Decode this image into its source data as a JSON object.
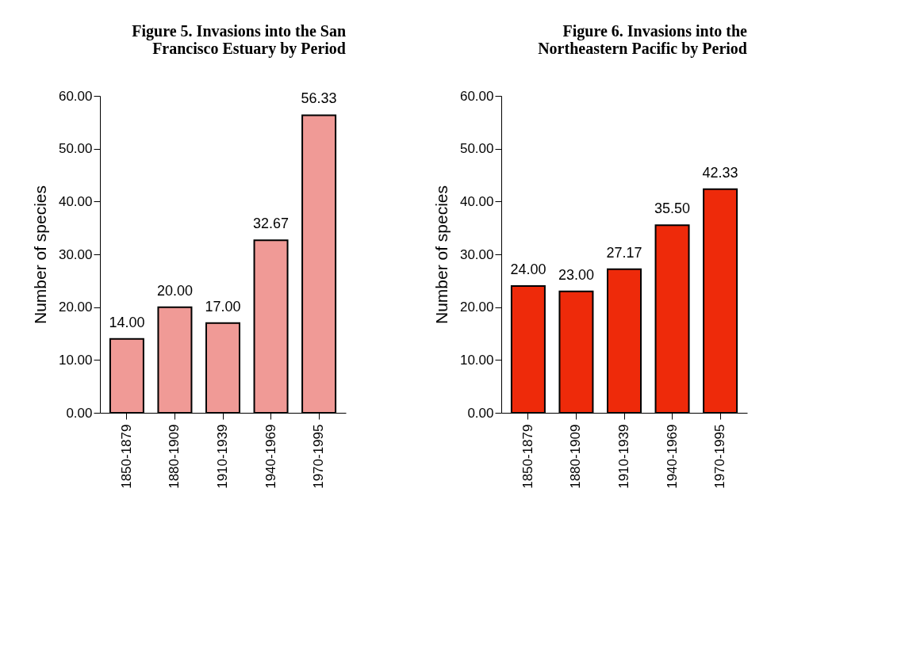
{
  "chart_data": [
    {
      "type": "bar",
      "title": "Figure 5. Invasions into the San\nFrancisco Estuary by Period",
      "ylabel": "Number of species",
      "categories": [
        "1850-1879",
        "1880-1909",
        "1910-1939",
        "1940-1969",
        "1970-1995"
      ],
      "values": [
        14.0,
        20.0,
        17.0,
        32.67,
        56.33
      ],
      "value_labels": [
        "14.00",
        "20.00",
        "17.00",
        "32.67",
        "56.33"
      ],
      "color": "#f09a96",
      "ylim": [
        0,
        60
      ],
      "yticks": [
        {
          "value": 0,
          "label": "0.00"
        },
        {
          "value": 10,
          "label": "10.00"
        },
        {
          "value": 20,
          "label": "20.00"
        },
        {
          "value": 30,
          "label": "30.00"
        },
        {
          "value": 40,
          "label": "40.00"
        },
        {
          "value": 50,
          "label": "50.00"
        },
        {
          "value": 60,
          "label": "60.00"
        }
      ],
      "grid": false
    },
    {
      "type": "bar",
      "title": "Figure 6. Invasions into the\nNortheastern Pacific by Period",
      "ylabel": "Number of species",
      "categories": [
        "1850-1879",
        "1880-1909",
        "1910-1939",
        "1940-1969",
        "1970-1995"
      ],
      "values": [
        24.0,
        23.0,
        27.17,
        35.5,
        42.33
      ],
      "value_labels": [
        "24.00",
        "23.00",
        "27.17",
        "35.50",
        "42.33"
      ],
      "color": "#ee2a0a",
      "ylim": [
        0,
        60
      ],
      "yticks": [
        {
          "value": 0,
          "label": "0.00"
        },
        {
          "value": 10,
          "label": "10.00"
        },
        {
          "value": 20,
          "label": "20.00"
        },
        {
          "value": 30,
          "label": "30.00"
        },
        {
          "value": 40,
          "label": "40.00"
        },
        {
          "value": 50,
          "label": "50.00"
        },
        {
          "value": 60,
          "label": "60.00"
        }
      ],
      "grid": false
    }
  ]
}
